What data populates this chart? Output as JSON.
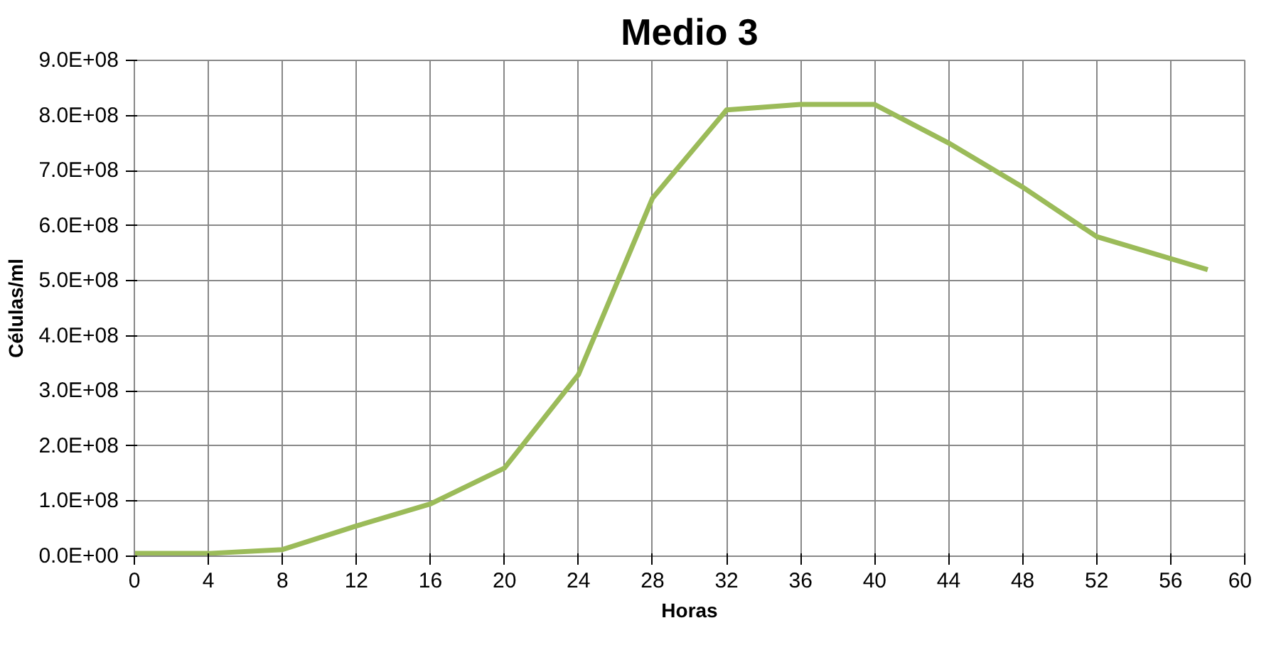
{
  "chart_data": {
    "type": "line",
    "title": "Medio 3",
    "xlabel": "Horas",
    "ylabel": "Células/ml",
    "x": [
      0,
      4,
      8,
      12,
      16,
      20,
      24,
      28,
      32,
      36,
      40,
      44,
      48,
      52,
      58
    ],
    "series": [
      {
        "color": "#9bbb59",
        "values": [
          5000000,
          5000000,
          12000000,
          55000000,
          95000000,
          160000000,
          330000000,
          650000000,
          810000000,
          820000000,
          820000000,
          750000000,
          670000000,
          580000000,
          520000000
        ]
      }
    ],
    "xlim": [
      0,
      60
    ],
    "xticks": [
      0,
      4,
      8,
      12,
      16,
      20,
      24,
      28,
      32,
      36,
      40,
      44,
      48,
      52,
      56,
      60
    ],
    "ylim": [
      0,
      900000000
    ],
    "yticks": [
      {
        "value": 0,
        "label": "0.0E+00"
      },
      {
        "value": 100000000,
        "label": "1.0E+08"
      },
      {
        "value": 200000000,
        "label": "2.0E+08"
      },
      {
        "value": 300000000,
        "label": "3.0E+08"
      },
      {
        "value": 400000000,
        "label": "4.0E+08"
      },
      {
        "value": 500000000,
        "label": "5.0E+08"
      },
      {
        "value": 600000000,
        "label": "6.0E+08"
      },
      {
        "value": 700000000,
        "label": "7.0E+08"
      },
      {
        "value": 800000000,
        "label": "8.0E+08"
      },
      {
        "value": 900000000,
        "label": "9.0E+08"
      }
    ],
    "grid": true,
    "marker": "none",
    "line_style": "solid"
  }
}
